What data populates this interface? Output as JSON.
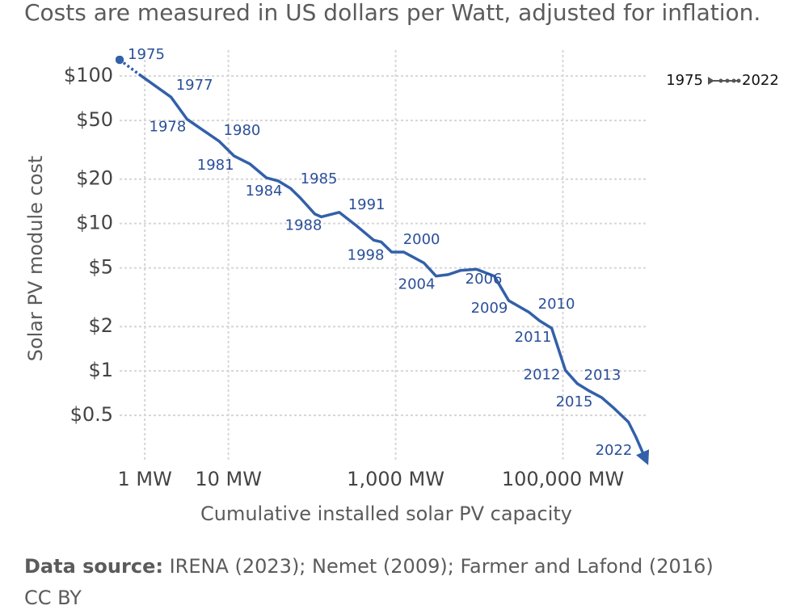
{
  "chart_data": {
    "type": "line",
    "subtitle": "Costs are measured in US dollars per Watt, adjusted for inflation.",
    "y_label": "Solar PV module cost",
    "x_label": "Cumulative installed solar PV capacity",
    "x_log": true,
    "y_log": true,
    "grid": true,
    "xlim": [
      0.5,
      1000000
    ],
    "ylim": [
      0.25,
      150
    ],
    "xticks": [
      {
        "value": 1,
        "label": "1 MW"
      },
      {
        "value": 10,
        "label": "10 MW"
      },
      {
        "value": 1000,
        "label": "1,000 MW"
      },
      {
        "value": 100000,
        "label": "100,000 MW"
      }
    ],
    "yticks": [
      {
        "value": 100,
        "label": "$100"
      },
      {
        "value": 50,
        "label": "$50"
      },
      {
        "value": 20,
        "label": "$20"
      },
      {
        "value": 10,
        "label": "$10"
      },
      {
        "value": 5,
        "label": "$5"
      },
      {
        "value": 2,
        "label": "$2"
      },
      {
        "value": 1,
        "label": "$1"
      },
      {
        "value": 0.5,
        "label": "$0.5"
      }
    ],
    "timeline": {
      "start": "1975",
      "end": "2022"
    },
    "series": [
      {
        "name": "Solar PV module cost",
        "color": "#3360a9",
        "label_color": "#2a4f9a",
        "x": [
          0.5,
          0.85,
          2.06,
          3.2,
          7.8,
          11.7,
          18.2,
          28.5,
          39.7,
          55.4,
          72.4,
          108,
          129,
          211,
          329,
          548,
          670,
          895,
          1250,
          2180,
          3040,
          4250,
          5930,
          9250,
          15100,
          22500,
          39300,
          52500,
          73300,
          107000,
          149000,
          208000,
          291000,
          406000,
          607000,
          741000,
          925000
        ],
        "values": [
          129,
          103,
          72,
          51,
          36,
          28.7,
          25.3,
          20.4,
          19.4,
          17.3,
          14.9,
          11.6,
          11.1,
          11.9,
          9.8,
          7.7,
          7.5,
          6.4,
          6.4,
          5.4,
          4.4,
          4.5,
          4.8,
          4.9,
          4.4,
          3.0,
          2.5,
          2.19,
          1.95,
          1.01,
          0.82,
          0.73,
          0.66,
          0.56,
          0.45,
          0.36,
          0.27
        ],
        "point_labels": [
          "1975",
          null,
          "1977",
          "1978",
          "1980",
          "1981",
          null,
          null,
          "1984",
          null,
          "1985",
          null,
          "1988",
          null,
          "1991",
          null,
          "1998",
          null,
          "2000",
          null,
          "2004",
          null,
          null,
          "2006",
          null,
          "2009",
          null,
          "2010",
          "2011",
          "2012",
          "2013",
          null,
          "2015",
          null,
          null,
          null,
          "2022"
        ]
      }
    ]
  },
  "footer": {
    "source_label": "Data source:",
    "source": "IRENA (2023); Nemet (2009); Farmer and Lafond (2016)",
    "license": "CC BY"
  }
}
